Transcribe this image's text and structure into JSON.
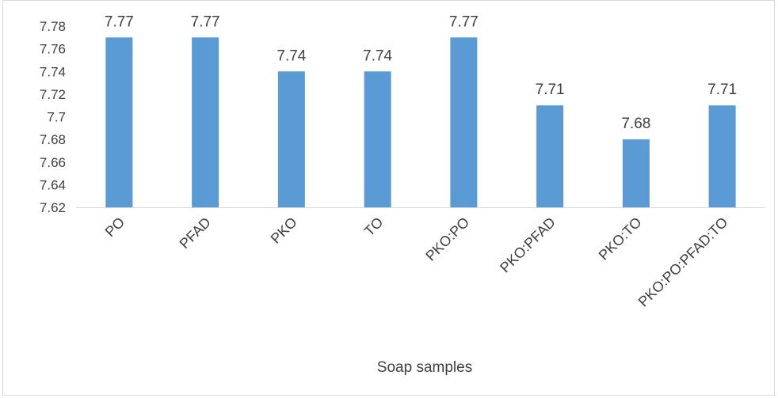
{
  "chart_data": {
    "type": "bar",
    "title": "",
    "xlabel": "Soap samples",
    "ylabel": "",
    "categories": [
      "PO",
      "PFAD",
      "PKO",
      "TO",
      "PKO:PO",
      "PKO:PFAD",
      "PKO:TO",
      "PKO:PO:PFAD:TO"
    ],
    "values": [
      7.77,
      7.77,
      7.74,
      7.74,
      7.77,
      7.71,
      7.68,
      7.71
    ],
    "data_labels": [
      "7.77",
      "7.77",
      "7.74",
      "7.74",
      "7.77",
      "7.71",
      "7.68",
      "7.71"
    ],
    "ylim": [
      7.62,
      7.78
    ],
    "yticks": [
      "7.62",
      "7.64",
      "7.66",
      "7.68",
      "7.7",
      "7.72",
      "7.74",
      "7.76",
      "7.78"
    ],
    "grid": false,
    "legend": "none",
    "bar_color": "#5b9bd5",
    "axis_color": "#d9d9d9",
    "text_color": "#404040"
  }
}
